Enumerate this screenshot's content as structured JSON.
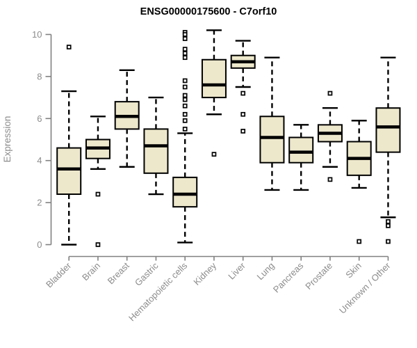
{
  "title": "ENSG00000175600 - C7orf10",
  "chart_data": {
    "type": "boxplot",
    "title": "ENSG00000175600 - C7orf10",
    "xlabel": "",
    "ylabel": "Expression",
    "ylim": [
      0,
      10
    ],
    "yticks": [
      0,
      2,
      4,
      6,
      8,
      10
    ],
    "grid": false,
    "legend": "none",
    "categories": [
      "Bladder",
      "Brain",
      "Breast",
      "Gastric",
      "Hematopoietic cells",
      "Kidney",
      "Liver",
      "Lung",
      "Pancreas",
      "Prostate",
      "Skin",
      "Unknown / Other"
    ],
    "series": [
      {
        "label": "Bladder",
        "whisker_low": 0.0,
        "q1": 2.4,
        "median": 3.6,
        "q3": 4.6,
        "whisker_high": 7.3,
        "outliers": [
          9.4
        ]
      },
      {
        "label": "Brain",
        "whisker_low": 3.6,
        "q1": 4.1,
        "median": 4.6,
        "q3": 5.0,
        "whisker_high": 6.1,
        "outliers": [
          2.4,
          0.0
        ]
      },
      {
        "label": "Breast",
        "whisker_low": 3.7,
        "q1": 5.5,
        "median": 6.1,
        "q3": 6.8,
        "whisker_high": 8.3,
        "outliers": []
      },
      {
        "label": "Gastric",
        "whisker_low": 2.4,
        "q1": 3.4,
        "median": 4.7,
        "q3": 5.5,
        "whisker_high": 7.0,
        "outliers": []
      },
      {
        "label": "Hematopoietic cells",
        "whisker_low": 0.1,
        "q1": 1.8,
        "median": 2.4,
        "q3": 3.2,
        "whisker_high": 5.3,
        "outliers": [
          10.1,
          10.0,
          9.8,
          9.3,
          9.1,
          8.9,
          7.8,
          7.5,
          7.1,
          6.9,
          6.6,
          6.2,
          5.9,
          5.5
        ]
      },
      {
        "label": "Kidney",
        "whisker_low": 6.2,
        "q1": 7.0,
        "median": 7.6,
        "q3": 8.8,
        "whisker_high": 10.2,
        "outliers": [
          4.3
        ]
      },
      {
        "label": "Liver",
        "whisker_low": 7.5,
        "q1": 8.4,
        "median": 8.7,
        "q3": 9.0,
        "whisker_high": 9.7,
        "outliers": [
          7.2,
          6.2,
          5.4
        ]
      },
      {
        "label": "Lung",
        "whisker_low": 2.6,
        "q1": 3.9,
        "median": 5.1,
        "q3": 6.1,
        "whisker_high": 8.9,
        "outliers": []
      },
      {
        "label": "Pancreas",
        "whisker_low": 2.6,
        "q1": 3.9,
        "median": 4.4,
        "q3": 5.1,
        "whisker_high": 5.7,
        "outliers": []
      },
      {
        "label": "Prostate",
        "whisker_low": 3.7,
        "q1": 4.9,
        "median": 5.3,
        "q3": 5.7,
        "whisker_high": 6.5,
        "outliers": [
          7.2,
          3.1
        ]
      },
      {
        "label": "Skin",
        "whisker_low": 2.7,
        "q1": 3.3,
        "median": 4.1,
        "q3": 4.9,
        "whisker_high": 5.9,
        "outliers": [
          0.15
        ]
      },
      {
        "label": "Unknown / Other",
        "whisker_low": 1.3,
        "q1": 4.4,
        "median": 5.6,
        "q3": 6.5,
        "whisker_high": 8.9,
        "outliers": [
          1.1,
          0.9,
          0.15
        ]
      }
    ],
    "colors": {
      "box_fill": "#EDE8CC",
      "box_stroke": "#000000",
      "median": "#000000",
      "whisker": "#000000",
      "outlier_stroke": "#000000",
      "outlier_fill": "#FFFFFF",
      "axis": "#808080",
      "tick_label": "#8C8C8C",
      "title": "#000000",
      "background": "#FFFFFF"
    }
  }
}
